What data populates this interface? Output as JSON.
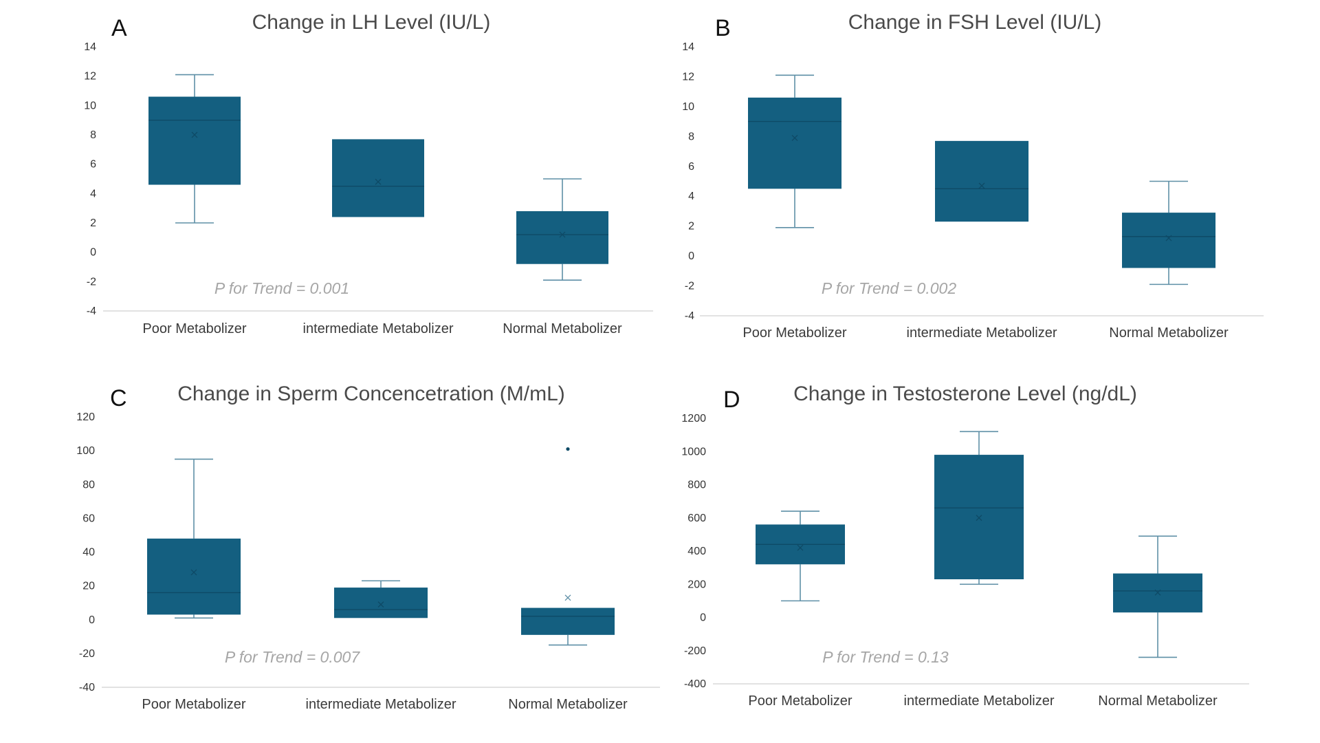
{
  "colors": {
    "box_fill": "#145f80",
    "whisker": "#5e8fa6",
    "median": "#0e4a66",
    "axis": "#d9d9d9",
    "annotation": "#a6a6a6"
  },
  "chart_data": [
    {
      "letter": "A",
      "type": "box",
      "title": "Change in LH Level (IU/L)",
      "categories": [
        "Poor Metabolizer",
        "intermediate Metabolizer",
        "Normal Metabolizer"
      ],
      "ylim": [
        -4,
        14
      ],
      "yticks": [
        -4,
        -2,
        0,
        2,
        4,
        6,
        8,
        10,
        12,
        14
      ],
      "annotation": "P for Trend = 0.001",
      "boxes": [
        {
          "min": 2.0,
          "q1": 4.6,
          "median": 9.0,
          "q3": 10.6,
          "max": 12.1,
          "mean": 8.0,
          "outliers": []
        },
        {
          "min": 2.4,
          "q1": 2.4,
          "median": 4.5,
          "q3": 7.7,
          "max": 7.7,
          "mean": 4.8,
          "outliers": []
        },
        {
          "min": -1.9,
          "q1": -0.8,
          "median": 1.2,
          "q3": 2.8,
          "max": 5.0,
          "mean": 1.2,
          "outliers": []
        }
      ]
    },
    {
      "letter": "B",
      "type": "box",
      "title": "Change in FSH Level (IU/L)",
      "categories": [
        "Poor Metabolizer",
        "intermediate Metabolizer",
        "Normal Metabolizer"
      ],
      "ylim": [
        -4,
        14
      ],
      "yticks": [
        -4,
        -2,
        0,
        2,
        4,
        6,
        8,
        10,
        12,
        14
      ],
      "annotation": "P for Trend = 0.002",
      "boxes": [
        {
          "min": 1.9,
          "q1": 4.5,
          "median": 9.0,
          "q3": 10.6,
          "max": 12.1,
          "mean": 7.9,
          "outliers": []
        },
        {
          "min": 2.3,
          "q1": 2.3,
          "median": 4.5,
          "q3": 7.7,
          "max": 7.7,
          "mean": 4.7,
          "outliers": []
        },
        {
          "min": -1.9,
          "q1": -0.8,
          "median": 1.3,
          "q3": 2.9,
          "max": 5.0,
          "mean": 1.2,
          "outliers": []
        }
      ]
    },
    {
      "letter": "C",
      "type": "box",
      "title": "Change in Sperm Concencetration (M/mL)",
      "categories": [
        "Poor Metabolizer",
        "intermediate Metabolizer",
        "Normal Metabolizer"
      ],
      "ylim": [
        -40,
        120
      ],
      "yticks": [
        -40,
        -20,
        0,
        20,
        40,
        60,
        80,
        100,
        120
      ],
      "annotation": "P for Trend = 0.007",
      "boxes": [
        {
          "min": 1,
          "q1": 3,
          "median": 16,
          "q3": 48,
          "max": 95,
          "mean": 28,
          "outliers": []
        },
        {
          "min": 1,
          "q1": 1,
          "median": 6,
          "q3": 19,
          "max": 23,
          "mean": 9,
          "outliers": []
        },
        {
          "min": -15,
          "q1": -9,
          "median": 2,
          "q3": 7,
          "max": 7,
          "mean": 13,
          "outliers": [
            101
          ]
        }
      ]
    },
    {
      "letter": "D",
      "type": "box",
      "title": "Change in Testosterone Level (ng/dL)",
      "categories": [
        "Poor Metabolizer",
        "intermediate Metabolizer",
        "Normal Metabolizer"
      ],
      "ylim": [
        -400,
        1200
      ],
      "yticks": [
        -400,
        -200,
        0,
        200,
        400,
        600,
        800,
        1000,
        1200
      ],
      "annotation": "P for Trend = 0.13",
      "boxes": [
        {
          "min": 100,
          "q1": 320,
          "median": 440,
          "q3": 560,
          "max": 640,
          "mean": 420,
          "outliers": []
        },
        {
          "min": 200,
          "q1": 230,
          "median": 660,
          "q3": 980,
          "max": 1120,
          "mean": 600,
          "outliers": []
        },
        {
          "min": -240,
          "q1": 30,
          "median": 160,
          "q3": 265,
          "max": 490,
          "mean": 150,
          "outliers": []
        }
      ]
    }
  ]
}
